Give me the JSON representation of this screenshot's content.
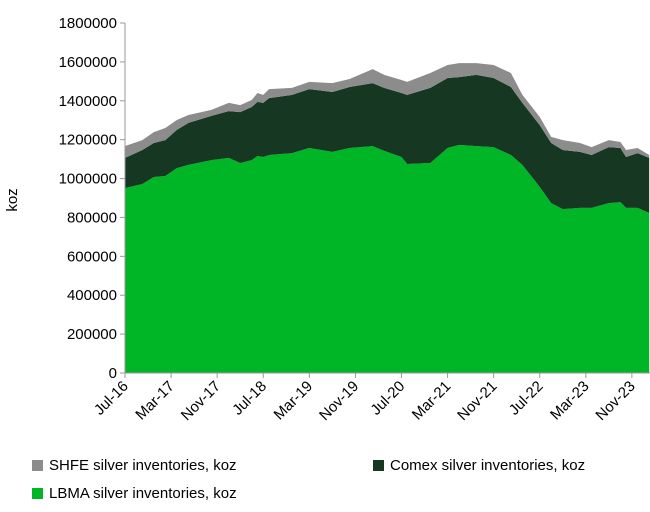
{
  "chart_data": {
    "type": "area",
    "stacked": true,
    "title": "",
    "xlabel": "",
    "ylabel": "koz",
    "ylim": [
      0,
      1800000
    ],
    "yticks": [
      0,
      200000,
      400000,
      600000,
      800000,
      1000000,
      1200000,
      1400000,
      1600000,
      1800000
    ],
    "xtick_labels": [
      "Jul-16",
      "Mar-17",
      "Nov-17",
      "Jul-18",
      "Mar-19",
      "Nov-19",
      "Jul-20",
      "Mar-21",
      "Nov-21",
      "Jul-22",
      "Mar-23",
      "Nov-23"
    ],
    "x": [
      "2016-07",
      "2016-10",
      "2016-12",
      "2017-02",
      "2017-04",
      "2017-06",
      "2017-10",
      "2018-01",
      "2018-03",
      "2018-05",
      "2018-06",
      "2018-07",
      "2018-08",
      "2018-12",
      "2019-03",
      "2019-07",
      "2019-10",
      "2020-02",
      "2020-04",
      "2020-07",
      "2020-08",
      "2020-12",
      "2021-03",
      "2021-05",
      "2021-08",
      "2021-11",
      "2022-02",
      "2022-04",
      "2022-07",
      "2022-09",
      "2022-11",
      "2023-02",
      "2023-04",
      "2023-07",
      "2023-09",
      "2023-10",
      "2023-12",
      "2024-02"
    ],
    "series": [
      {
        "name": "LBMA silver inventories, koz",
        "color": "#00b526",
        "values": [
          951000,
          972000,
          1008000,
          1013000,
          1054000,
          1070000,
          1095000,
          1106000,
          1080000,
          1095000,
          1116000,
          1111000,
          1121000,
          1131000,
          1157000,
          1137000,
          1157000,
          1167000,
          1142000,
          1111000,
          1075000,
          1080000,
          1157000,
          1173000,
          1167000,
          1162000,
          1121000,
          1070000,
          957000,
          874000,
          843000,
          849000,
          849000,
          874000,
          879000,
          849000,
          849000,
          823000
        ]
      },
      {
        "name": "Comex silver inventories, koz",
        "color": "#163823",
        "values": [
          155000,
          175000,
          175000,
          185000,
          196000,
          216000,
          227000,
          241000,
          262000,
          273000,
          278000,
          278000,
          293000,
          299000,
          303000,
          308000,
          314000,
          324000,
          324000,
          329000,
          355000,
          386000,
          360000,
          349000,
          366000,
          355000,
          350000,
          319000,
          318000,
          309000,
          304000,
          288000,
          272000,
          288000,
          278000,
          262000,
          282000,
          283000
        ]
      },
      {
        "name": "SHFE silver inventories, koz",
        "color": "#8c8c8c",
        "values": [
          61000,
          51000,
          56000,
          62000,
          51000,
          41000,
          31000,
          42000,
          36000,
          36000,
          46000,
          41000,
          46000,
          36000,
          37000,
          46000,
          41000,
          72000,
          67000,
          67000,
          67000,
          77000,
          67000,
          72000,
          61000,
          67000,
          72000,
          41000,
          42000,
          31000,
          51000,
          46000,
          41000,
          36000,
          31000,
          36000,
          26000,
          15000
        ]
      }
    ],
    "grid": false,
    "legend_position": "bottom"
  }
}
